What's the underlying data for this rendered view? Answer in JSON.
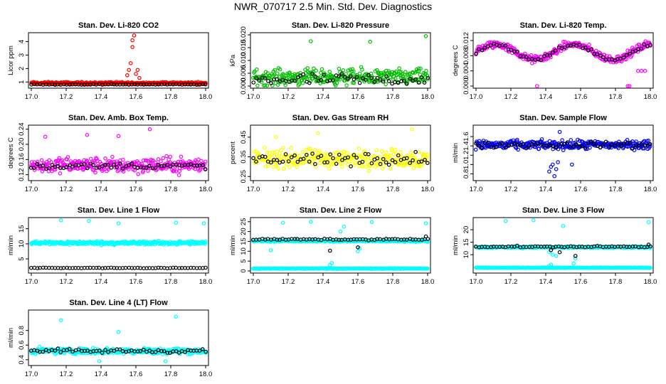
{
  "page_title": "NWR_070717  2.5 Min. Std. Dev. Diagnostics",
  "colors": {
    "red": "#ff0000",
    "green": "#00c000",
    "magenta": "#ff00ff",
    "yellow": "#ffff00",
    "blue": "#0000ff",
    "cyan": "#00ffff",
    "black": "#000000"
  },
  "chart_data": [
    {
      "type": "scatter",
      "title": "Stan. Dev. Li-820 CO2",
      "ylabel": "Licor ppm",
      "xlim": [
        17.0,
        18.0
      ],
      "ylim": [
        0.7,
        4.5
      ],
      "xticks": [
        "17.0",
        "17.2",
        "17.4",
        "17.6",
        "17.8",
        "18.0"
      ],
      "yticks": [
        "1",
        "2",
        "3",
        "4"
      ],
      "ytick_values": [
        1,
        2,
        3,
        4
      ],
      "series": [
        {
          "name": "all",
          "color": "red",
          "base": 0.92,
          "spread": 0.12,
          "spikes": [
            [
              17.56,
              1.9
            ],
            [
              17.57,
              2.4
            ],
            [
              17.58,
              3.6
            ],
            [
              17.58,
              4.1
            ],
            [
              17.59,
              4.45
            ],
            [
              17.6,
              1.6
            ],
            [
              17.61,
              1.9
            ],
            [
              17.62,
              1.3
            ],
            [
              17.55,
              1.5
            ]
          ]
        },
        {
          "name": "black",
          "color": "black",
          "base": 0.82,
          "spread": 0.04,
          "spikes": []
        }
      ]
    },
    {
      "type": "scatter",
      "title": "Stan. Dev. Li-820 Pressure",
      "ylabel": "kPa",
      "xlim": [
        17.0,
        18.0
      ],
      "ylim": [
        0.0,
        0.02
      ],
      "xticks": [
        "17.0",
        "17.2",
        "17.4",
        "17.6",
        "17.8",
        "18.0"
      ],
      "yticks": [
        "0.000",
        "0.005",
        "0.010",
        "0.015",
        "0.020"
      ],
      "ytick_values": [
        0.0,
        0.005,
        0.01,
        0.015,
        0.02
      ],
      "series": [
        {
          "name": "all",
          "color": "green",
          "base": 0.0035,
          "spread": 0.0045,
          "spikes": [
            [
              17.33,
              0.0175
            ],
            [
              17.67,
              0.0173
            ],
            [
              17.99,
              0.0195
            ]
          ]
        },
        {
          "name": "black",
          "color": "black",
          "base": 0.0025,
          "spread": 0.0035,
          "spikes": []
        }
      ]
    },
    {
      "type": "scatter",
      "title": "Stan. Dev. Li-820 Temp.",
      "ylabel": "degrees C",
      "xlim": [
        17.0,
        18.0
      ],
      "ylim": [
        0.0,
        0.0135
      ],
      "xticks": [
        "17.0",
        "17.2",
        "17.4",
        "17.6",
        "17.8",
        "18.0"
      ],
      "yticks": [
        "0.000",
        "0.004",
        "0.008",
        "0.012"
      ],
      "ytick_values": [
        0.0,
        0.004,
        0.008,
        0.012
      ],
      "series": [
        {
          "name": "all",
          "color": "magenta",
          "base": 0.009,
          "spread": 0.0015,
          "spikes": [
            [
              17.35,
              0.0
            ],
            [
              17.87,
              0.0
            ],
            [
              17.88,
              0.0
            ],
            [
              17.93,
              0.004
            ],
            [
              17.95,
              0.004
            ],
            [
              17.97,
              0.004
            ]
          ]
        },
        {
          "name": "black",
          "color": "black",
          "base": 0.009,
          "spread": 0.0008,
          "spikes": []
        }
      ]
    },
    {
      "type": "scatter",
      "title": "Stan. Dev. Amb. Box Temp.",
      "ylabel": "degrees C",
      "xlim": [
        17.0,
        18.0
      ],
      "ylim": [
        0.11,
        0.245
      ],
      "xticks": [
        "17.0",
        "17.2",
        "17.4",
        "17.6",
        "17.8",
        "18.0"
      ],
      "yticks": [
        "0.12",
        "0.16",
        "0.20",
        "0.24"
      ],
      "ytick_values": [
        0.12,
        0.16,
        0.2,
        0.24
      ],
      "series": [
        {
          "name": "all",
          "color": "magenta",
          "base": 0.145,
          "spread": 0.03,
          "spikes": [
            [
              17.68,
              0.24
            ],
            [
              17.32,
              0.225
            ],
            [
              17.08,
              0.22
            ],
            [
              17.5,
              0.222
            ]
          ]
        },
        {
          "name": "black",
          "color": "black",
          "base": 0.143,
          "spread": 0.012,
          "spikes": []
        }
      ]
    },
    {
      "type": "scatter",
      "title": "Stan. Dev. Gas Stream RH",
      "ylabel": "percent",
      "xlim": [
        17.0,
        18.0
      ],
      "ylim": [
        0.24,
        0.5
      ],
      "xticks": [
        "17.0",
        "17.2",
        "17.4",
        "17.6",
        "17.8",
        "18.0"
      ],
      "yticks": [
        "0.25",
        "0.35",
        "0.45"
      ],
      "ytick_values": [
        0.25,
        0.35,
        0.45
      ],
      "series": [
        {
          "name": "all",
          "color": "yellow",
          "base": 0.34,
          "spread": 0.07,
          "spikes": [
            [
              17.91,
              0.49
            ],
            [
              17.37,
              0.47
            ],
            [
              17.13,
              0.45
            ]
          ]
        },
        {
          "name": "black",
          "color": "black",
          "base": 0.34,
          "spread": 0.05,
          "spikes": []
        }
      ]
    },
    {
      "type": "scatter",
      "title": "Stan. Dev. Sample Flow",
      "ylabel": "ml/min",
      "xlim": [
        17.0,
        18.0
      ],
      "ylim": [
        0.7,
        1.8
      ],
      "xticks": [
        "17.0",
        "17.2",
        "17.4",
        "17.6",
        "17.8",
        "18.0"
      ],
      "yticks": [
        "0.8",
        "1.0",
        "1.2",
        "1.4",
        "1.6"
      ],
      "ytick_values": [
        0.8,
        1.0,
        1.2,
        1.4,
        1.6
      ],
      "series": [
        {
          "name": "all",
          "color": "blue",
          "base": 1.42,
          "spread": 0.14,
          "spikes": [
            [
              17.42,
              0.85
            ],
            [
              17.43,
              0.95
            ],
            [
              17.44,
              1.0
            ],
            [
              17.45,
              0.75
            ],
            [
              17.46,
              0.9
            ],
            [
              17.47,
              1.05
            ],
            [
              17.55,
              1.0
            ],
            [
              17.48,
              1.7
            ]
          ]
        },
        {
          "name": "black",
          "color": "black",
          "base": 1.42,
          "spread": 0.1,
          "spikes": []
        }
      ]
    },
    {
      "type": "scatter",
      "title": "Stan. Dev. Line 1 Flow",
      "ylabel": "ml/min",
      "xlim": [
        17.0,
        18.0
      ],
      "ylim": [
        1.0,
        18.0
      ],
      "xticks": [
        "17.0",
        "17.2",
        "17.4",
        "17.6",
        "17.8",
        "18.0"
      ],
      "yticks": [
        "5",
        "10",
        "15"
      ],
      "ytick_values": [
        5,
        10,
        15
      ],
      "series": [
        {
          "name": "all",
          "color": "cyan",
          "base": 10.3,
          "spread": 0.9,
          "spikes": [
            [
              17.17,
              17.8
            ],
            [
              17.5,
              16.8
            ],
            [
              17.83,
              17.0
            ],
            [
              17.99,
              16.8
            ],
            [
              17.33,
              17.6
            ]
          ]
        },
        {
          "name": "black",
          "color": "black",
          "base": 2.0,
          "spread": 0.15,
          "spikes": []
        }
      ]
    },
    {
      "type": "scatter",
      "title": "Stan. Dev. Line 2 Flow",
      "ylabel": "ml/min",
      "xlim": [
        17.0,
        18.0
      ],
      "ylim": [
        0.0,
        26.0
      ],
      "xticks": [
        "17.0",
        "17.2",
        "17.4",
        "17.6",
        "17.8",
        "18.0"
      ],
      "yticks": [
        "0",
        "5",
        "10",
        "15",
        "20",
        "25"
      ],
      "ytick_values": [
        0,
        5,
        10,
        15,
        20,
        25
      ],
      "series": [
        {
          "name": "all",
          "color": "cyan",
          "base": 15.2,
          "spread": 0.6,
          "spikes": [
            [
              17.17,
              24.5
            ],
            [
              17.5,
              20.0
            ],
            [
              17.52,
              22.5
            ],
            [
              17.6,
              10.0
            ],
            [
              17.61,
              11.5
            ],
            [
              17.99,
              24.2
            ],
            [
              17.33,
              25.0
            ],
            [
              17.68,
              24.8
            ],
            [
              17.43,
              1.5
            ],
            [
              17.44,
              3.0
            ],
            [
              17.45,
              4.0
            ],
            [
              17.1,
              10.5
            ]
          ]
        },
        {
          "name": "low",
          "color": "cyan",
          "base": 1.2,
          "spread": 0.2,
          "spikes": []
        },
        {
          "name": "black",
          "color": "black",
          "base": 16.0,
          "spread": 0.5,
          "spikes": [
            [
              17.44,
              10.3
            ],
            [
              17.6,
              12.0
            ],
            [
              17.99,
              17.5
            ]
          ]
        }
      ]
    },
    {
      "type": "scatter",
      "title": "Stan. Dev. Line 3 Flow",
      "ylabel": "ml/min",
      "xlim": [
        17.0,
        18.0
      ],
      "ylim": [
        3.5,
        24.0
      ],
      "xticks": [
        "17.0",
        "17.2",
        "17.4",
        "17.6",
        "17.8",
        "18.0"
      ],
      "yticks": [
        "10",
        "15",
        "20"
      ],
      "ytick_values": [
        10,
        15,
        20
      ],
      "series": [
        {
          "name": "all",
          "color": "cyan",
          "base": 13.0,
          "spread": 0.5,
          "spikes": [
            [
              17.17,
              23.5
            ],
            [
              17.42,
              11.0
            ],
            [
              17.44,
              10.0
            ],
            [
              17.46,
              9.5
            ],
            [
              17.56,
              6.5
            ],
            [
              17.57,
              8.5
            ],
            [
              17.99,
              23.0
            ],
            [
              17.5,
              21.5
            ],
            [
              17.33,
              23.8
            ],
            [
              17.42,
              5.5
            ],
            [
              17.43,
              6.0
            ]
          ]
        },
        {
          "name": "low",
          "color": "cyan",
          "base": 4.8,
          "spread": 0.15,
          "spikes": []
        },
        {
          "name": "black",
          "color": "black",
          "base": 13.2,
          "spread": 0.4,
          "spikes": [
            [
              17.43,
              11.8
            ],
            [
              17.48,
              11.0
            ],
            [
              17.57,
              9.5
            ],
            [
              17.99,
              14.0
            ]
          ]
        }
      ]
    },
    {
      "type": "scatter",
      "title": "Stan. Dev. Line 4 (LT) Flow",
      "ylabel": "ml/min",
      "xlim": [
        17.0,
        18.0
      ],
      "ylim": [
        0.35,
        1.05
      ],
      "xticks": [
        "17.0",
        "17.2",
        "17.4",
        "17.6",
        "17.8",
        "18.0"
      ],
      "yticks": [
        "0.4",
        "0.6",
        "0.8"
      ],
      "ytick_values": [
        0.4,
        0.6,
        0.8
      ],
      "series": [
        {
          "name": "all",
          "color": "cyan",
          "base": 0.52,
          "spread": 0.06,
          "spikes": [
            [
              17.17,
              0.94
            ],
            [
              17.83,
              0.99
            ],
            [
              17.5,
              0.78
            ],
            [
              17.39,
              0.38
            ],
            [
              17.77,
              0.38
            ]
          ]
        },
        {
          "name": "black",
          "color": "black",
          "base": 0.52,
          "spread": 0.04,
          "spikes": []
        }
      ]
    }
  ]
}
